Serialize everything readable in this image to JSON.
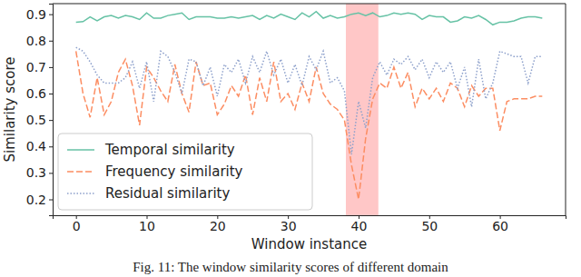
{
  "chart_data": {
    "type": "line",
    "x_label": "Window instance",
    "y_label": "Similarity score",
    "caption": "Fig. 11: The window similarity scores of different domain",
    "x": [
      0,
      1,
      2,
      3,
      4,
      5,
      6,
      7,
      8,
      9,
      10,
      11,
      12,
      13,
      14,
      15,
      16,
      17,
      18,
      19,
      20,
      21,
      22,
      23,
      24,
      25,
      26,
      27,
      28,
      29,
      30,
      31,
      32,
      33,
      34,
      35,
      36,
      37,
      38,
      39,
      40,
      41,
      42,
      43,
      44,
      45,
      46,
      47,
      48,
      49,
      50,
      51,
      52,
      53,
      54,
      55,
      56,
      57,
      58,
      59,
      60,
      61,
      62,
      63,
      64,
      65,
      66
    ],
    "xlim": [
      -3.3,
      69.3
    ],
    "xticks": [
      0,
      10,
      20,
      30,
      40,
      50,
      60
    ],
    "ylim": [
      0.14,
      0.94
    ],
    "yticks": [
      0.2,
      0.3,
      0.4,
      0.5,
      0.6,
      0.7,
      0.8,
      0.9
    ],
    "highlight_range": [
      38.2,
      42.8
    ],
    "legend": "lower left",
    "series": [
      {
        "name": "Temporal similarity",
        "color": "#66c2a5",
        "line_style": "solid",
        "values": [
          0.87,
          0.872,
          0.89,
          0.875,
          0.89,
          0.895,
          0.885,
          0.895,
          0.89,
          0.88,
          0.905,
          0.885,
          0.885,
          0.895,
          0.9,
          0.905,
          0.88,
          0.89,
          0.89,
          0.89,
          0.885,
          0.885,
          0.89,
          0.885,
          0.89,
          0.895,
          0.88,
          0.895,
          0.885,
          0.9,
          0.89,
          0.88,
          0.905,
          0.89,
          0.91,
          0.885,
          0.895,
          0.885,
          0.89,
          0.9,
          0.905,
          0.895,
          0.905,
          0.89,
          0.895,
          0.905,
          0.9,
          0.905,
          0.9,
          0.88,
          0.895,
          0.89,
          0.89,
          0.87,
          0.875,
          0.89,
          0.885,
          0.895,
          0.88,
          0.86,
          0.87,
          0.87,
          0.875,
          0.885,
          0.89,
          0.89,
          0.885
        ]
      },
      {
        "name": "Frequency similarity",
        "color": "#fc8d62",
        "line_style": "dashed",
        "values": [
          0.76,
          0.6,
          0.51,
          0.66,
          0.52,
          0.57,
          0.68,
          0.73,
          0.63,
          0.48,
          0.7,
          0.66,
          0.61,
          0.57,
          0.71,
          0.6,
          0.53,
          0.72,
          0.63,
          0.64,
          0.52,
          0.56,
          0.63,
          0.59,
          0.67,
          0.52,
          0.66,
          0.57,
          0.72,
          0.57,
          0.6,
          0.54,
          0.64,
          0.57,
          0.7,
          0.6,
          0.56,
          0.54,
          0.5,
          0.33,
          0.2,
          0.43,
          0.58,
          0.64,
          0.62,
          0.7,
          0.62,
          0.68,
          0.55,
          0.62,
          0.58,
          0.62,
          0.57,
          0.64,
          0.62,
          0.55,
          0.63,
          0.59,
          0.62,
          0.62,
          0.46,
          0.57,
          0.58,
          0.58,
          0.58,
          0.59,
          0.59
        ]
      },
      {
        "name": "Residual similarity",
        "color": "#8da0cb",
        "line_style": "dotted",
        "values": [
          0.775,
          0.76,
          0.72,
          0.67,
          0.64,
          0.64,
          0.64,
          0.66,
          0.72,
          0.62,
          0.72,
          0.57,
          0.76,
          0.74,
          0.68,
          0.6,
          0.73,
          0.72,
          0.63,
          0.7,
          0.59,
          0.71,
          0.68,
          0.73,
          0.64,
          0.74,
          0.68,
          0.76,
          0.67,
          0.73,
          0.64,
          0.71,
          0.63,
          0.74,
          0.69,
          0.76,
          0.64,
          0.66,
          0.61,
          0.37,
          0.57,
          0.47,
          0.66,
          0.72,
          0.67,
          0.73,
          0.71,
          0.74,
          0.69,
          0.73,
          0.66,
          0.72,
          0.68,
          0.72,
          0.62,
          0.7,
          0.55,
          0.73,
          0.58,
          0.64,
          0.76,
          0.75,
          0.74,
          0.74,
          0.64,
          0.74,
          0.74
        ]
      }
    ]
  }
}
